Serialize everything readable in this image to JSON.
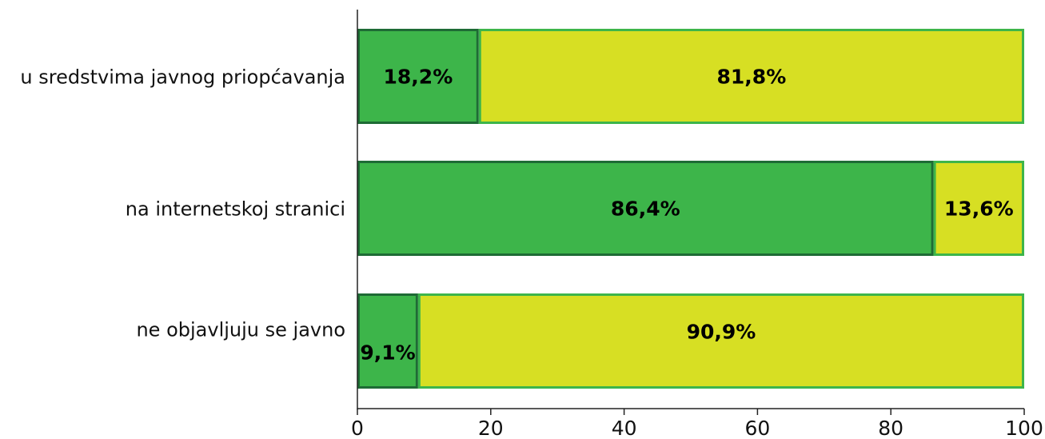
{
  "chart_data": {
    "type": "bar",
    "orientation": "horizontal",
    "stacked": true,
    "categories": [
      "u sredstvima javnog priopćavanja",
      "na internetskoj stranici",
      "ne objavljuju se javno"
    ],
    "series": [
      {
        "color": "#3db54a",
        "border_color": "#1e6b35",
        "values": [
          18.2,
          86.4,
          9.1
        ],
        "labels": [
          "18,2%",
          "86,4%",
          "9,1%"
        ]
      },
      {
        "color": "#d7df23",
        "border_color": "#3db54a",
        "values": [
          81.8,
          13.6,
          90.9
        ],
        "labels": [
          "81,8%",
          "13,6%",
          "90,9%"
        ]
      }
    ],
    "xlim": [
      0,
      100
    ],
    "xticks": [
      0,
      20,
      40,
      60,
      80,
      100
    ],
    "xtick_labels": [
      "0",
      "20",
      "40",
      "60",
      "80",
      "100"
    ],
    "title": "",
    "xlabel": "",
    "ylabel": "",
    "grid": false,
    "legend": "none"
  }
}
